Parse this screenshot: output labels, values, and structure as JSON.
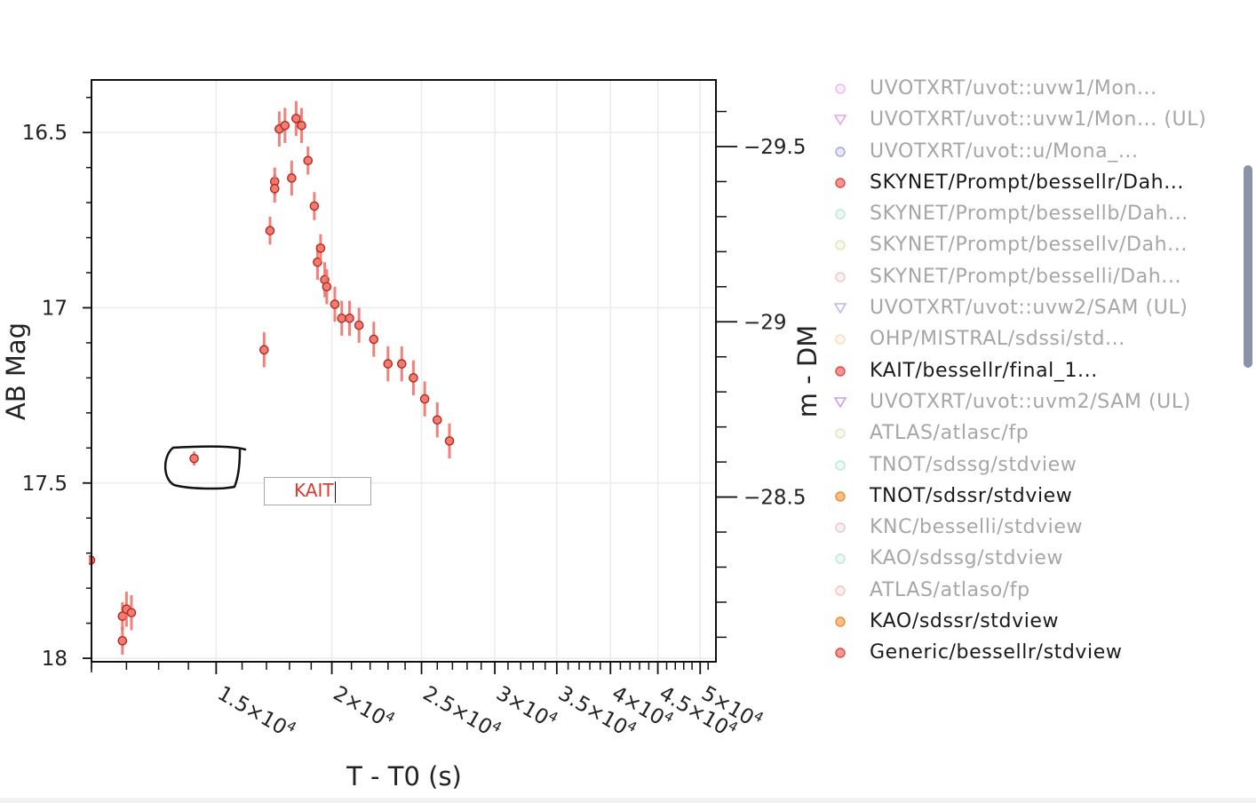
{
  "chart_data": {
    "type": "scatter",
    "xlabel": "T - T0 (s)",
    "ylabel": "AB Mag",
    "y2label": "m - DM",
    "x_scale": "log",
    "xlim": [
      11000,
      52000
    ],
    "ylim": [
      16.35,
      18.01
    ],
    "y_reversed": true,
    "y2lim": [
      -29.69,
      -28.03
    ],
    "grid": true,
    "x_tick_labels": [
      {
        "value": 15000,
        "m": "1.5×10",
        "e": "4"
      },
      {
        "value": 20000,
        "m": "2×10",
        "e": "4"
      },
      {
        "value": 25000,
        "m": "2.5×10",
        "e": "4"
      },
      {
        "value": 30000,
        "m": "3×10",
        "e": "4"
      },
      {
        "value": 35000,
        "m": "3.5×10",
        "e": "4"
      },
      {
        "value": 40000,
        "m": "4×10",
        "e": "4"
      },
      {
        "value": 45000,
        "m": "4.5×10",
        "e": "4"
      },
      {
        "value": 50000,
        "m": "5×10",
        "e": "4"
      }
    ],
    "x_minor_ticks": [
      11000,
      12000,
      13000,
      14000,
      16000,
      17000,
      18000,
      19000,
      21000,
      22000,
      23000,
      24000,
      26000,
      27000,
      28000,
      29000,
      31000,
      32000,
      33000,
      34000,
      36000,
      37000,
      38000,
      39000,
      41000,
      42000,
      43000,
      44000,
      46000,
      47000,
      48000,
      49000,
      51000
    ],
    "y_ticks": [
      16.5,
      17,
      17.5,
      18
    ],
    "y_tick_labels": [
      "16.5",
      "17",
      "17.5",
      "18"
    ],
    "y_minor_ticks": [
      16.4,
      16.6,
      16.7,
      16.8,
      16.9,
      17.1,
      17.2,
      17.3,
      17.4,
      17.6,
      17.7,
      17.8,
      17.9
    ],
    "y2_ticks": [
      -29.5,
      -29,
      -28.5
    ],
    "y2_tick_labels": [
      "−29.5",
      "−29",
      "−28.5"
    ],
    "y2_minor_ticks": [
      -29.6,
      -29.4,
      -29.3,
      -29.2,
      -29.1,
      -28.9,
      -28.8,
      -28.7,
      -28.6,
      -28.4,
      -28.3,
      -28.2,
      -28.1
    ],
    "series": [
      {
        "name": "Generic/bessellr/stdview",
        "color": "#e8453c",
        "points": [
          {
            "x": 11880,
            "y": 17.88,
            "err": 0.04
          },
          {
            "x": 11880,
            "y": 17.95,
            "err": 0.04
          },
          {
            "x": 12000,
            "y": 17.86,
            "err": 0.05
          },
          {
            "x": 12150,
            "y": 17.87,
            "err": 0.05
          },
          {
            "x": 14200,
            "y": 17.43,
            "err": 0.02
          },
          {
            "x": 16900,
            "y": 17.12,
            "err": 0.05
          },
          {
            "x": 17150,
            "y": 16.78,
            "err": 0.04
          },
          {
            "x": 17350,
            "y": 16.64,
            "err": 0.04
          },
          {
            "x": 17350,
            "y": 16.66,
            "err": 0.04
          },
          {
            "x": 17550,
            "y": 16.49,
            "err": 0.05
          },
          {
            "x": 17800,
            "y": 16.48,
            "err": 0.05
          },
          {
            "x": 18100,
            "y": 16.63,
            "err": 0.05
          },
          {
            "x": 18300,
            "y": 16.46,
            "err": 0.05
          },
          {
            "x": 18550,
            "y": 16.48,
            "err": 0.05
          },
          {
            "x": 18850,
            "y": 16.58,
            "err": 0.04
          },
          {
            "x": 19150,
            "y": 16.71,
            "err": 0.04
          },
          {
            "x": 19300,
            "y": 16.87,
            "err": 0.05
          },
          {
            "x": 19450,
            "y": 16.83,
            "err": 0.04
          },
          {
            "x": 19650,
            "y": 16.92,
            "err": 0.05
          },
          {
            "x": 19750,
            "y": 16.94,
            "err": 0.05
          },
          {
            "x": 20150,
            "y": 16.99,
            "err": 0.05
          },
          {
            "x": 20500,
            "y": 17.03,
            "err": 0.05
          },
          {
            "x": 20900,
            "y": 17.03,
            "err": 0.05
          },
          {
            "x": 21400,
            "y": 17.05,
            "err": 0.05
          },
          {
            "x": 22200,
            "y": 17.09,
            "err": 0.05
          },
          {
            "x": 23000,
            "y": 17.16,
            "err": 0.05
          },
          {
            "x": 23800,
            "y": 17.16,
            "err": 0.05
          },
          {
            "x": 24500,
            "y": 17.2,
            "err": 0.05
          },
          {
            "x": 25200,
            "y": 17.26,
            "err": 0.05
          },
          {
            "x": 26000,
            "y": 17.32,
            "err": 0.05
          },
          {
            "x": 26800,
            "y": 17.38,
            "err": 0.05
          }
        ]
      }
    ],
    "annotation": {
      "text_value": "KAIT"
    }
  },
  "legend": {
    "items": [
      {
        "label": "UVOTXRT/uvot::uvw1/Mon...",
        "color": "#e07ee0",
        "marker": "circle",
        "active": false
      },
      {
        "label": "UVOTXRT/uvot::uvw1/Mon... (UL)",
        "color": "#d05ad0",
        "marker": "triangle",
        "active": false
      },
      {
        "label": "UVOTXRT/uvot::u/Mona_...",
        "color": "#5a5ad0",
        "marker": "circle",
        "active": false
      },
      {
        "label": "SKYNET/Prompt/bessellr/Dah...",
        "color": "#e8453c",
        "marker": "circle",
        "active": true
      },
      {
        "label": "SKYNET/Prompt/bessellb/Dah...",
        "color": "#7fd6b8",
        "marker": "circle",
        "active": false
      },
      {
        "label": "SKYNET/Prompt/bessellv/Dah...",
        "color": "#c9d27a",
        "marker": "circle",
        "active": false
      },
      {
        "label": "SKYNET/Prompt/besselli/Dah...",
        "color": "#d99898",
        "marker": "circle",
        "active": false
      },
      {
        "label": "UVOTXRT/uvot::uvw2/SAM (UL)",
        "color": "#7f7fe0",
        "marker": "triangle",
        "active": false
      },
      {
        "label": "OHP/MISTRAL/sdssi/std...",
        "color": "#f0c27a",
        "marker": "circle",
        "active": false
      },
      {
        "label": "KAIT/bessellr/final_1...",
        "color": "#e8453c",
        "marker": "circle",
        "active": true
      },
      {
        "label": "UVOTXRT/uvot::uvm2/SAM (UL)",
        "color": "#9a4ad0",
        "marker": "triangle",
        "active": false
      },
      {
        "label": "ATLAS/atlasc/fp",
        "color": "#b8d88a",
        "marker": "circle",
        "active": false
      },
      {
        "label": "TNOT/sdssg/stdview",
        "color": "#7fd6b8",
        "marker": "circle",
        "active": false
      },
      {
        "label": "TNOT/sdssr/stdview",
        "color": "#f08a2c",
        "marker": "circle",
        "active": true
      },
      {
        "label": "KNC/besselli/stdview",
        "color": "#d99898",
        "marker": "circle",
        "active": false
      },
      {
        "label": "KAO/sdssg/stdview",
        "color": "#7fd6b8",
        "marker": "circle",
        "active": false
      },
      {
        "label": "ATLAS/atlaso/fp",
        "color": "#e89090",
        "marker": "circle",
        "active": false
      },
      {
        "label": "KAO/sdssr/stdview",
        "color": "#f08a2c",
        "marker": "circle",
        "active": true
      },
      {
        "label": "Generic/bessellr/stdview",
        "color": "#e8453c",
        "marker": "circle",
        "active": true
      }
    ]
  },
  "annotation": {
    "text": "KAIT"
  }
}
